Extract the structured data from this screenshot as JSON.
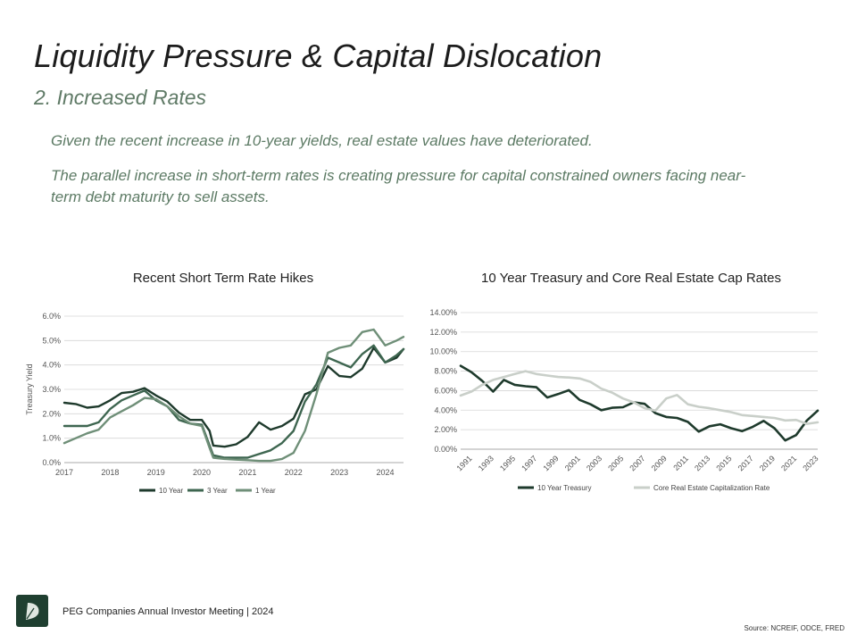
{
  "header": {
    "title": "Liquidity Pressure & Capital Dislocation",
    "subtitle": "2. Increased Rates"
  },
  "body": {
    "paragraph1": "Given the recent increase in 10-year yields, real estate values have deteriorated.",
    "paragraph2": "The parallel increase in short-term rates is creating pressure for capital constrained owners facing near-term debt maturity to sell assets."
  },
  "footer": {
    "text": "PEG Companies Annual Investor Meeting | 2024",
    "source": "Source: NCREIF, ODCE, FRED"
  },
  "colors": {
    "dark_green": "#1e3a2c",
    "mid_green": "#3e6650",
    "light_green": "#6f8f78",
    "light_gray": "#c9cfc9",
    "grid": "#d6d6d6",
    "logo_bg": "#1f3f30"
  },
  "chart_data": [
    {
      "type": "line",
      "title": "Recent Short Term Rate Hikes",
      "ylabel": "Treasury Yield",
      "xlabel": "",
      "xlim": [
        2017,
        2024.4
      ],
      "ylim": [
        0,
        6
      ],
      "x_ticks": [
        "2017",
        "2018",
        "2019",
        "2020",
        "2021",
        "2022",
        "2023",
        "2024"
      ],
      "y_ticks": [
        "0.0%",
        "1.0%",
        "2.0%",
        "3.0%",
        "4.0%",
        "5.0%",
        "6.0%"
      ],
      "grid": true,
      "legend_position": "bottom",
      "x": [
        2017.0,
        2017.25,
        2017.5,
        2017.75,
        2018.0,
        2018.25,
        2018.5,
        2018.75,
        2019.0,
        2019.25,
        2019.5,
        2019.75,
        2020.0,
        2020.17,
        2020.25,
        2020.5,
        2020.75,
        2021.0,
        2021.25,
        2021.5,
        2021.75,
        2022.0,
        2022.25,
        2022.5,
        2022.75,
        2023.0,
        2023.25,
        2023.5,
        2023.75,
        2024.0,
        2024.25,
        2024.4
      ],
      "series": [
        {
          "name": "10 Year",
          "values": [
            2.45,
            2.4,
            2.25,
            2.3,
            2.55,
            2.85,
            2.9,
            3.05,
            2.75,
            2.5,
            2.05,
            1.75,
            1.75,
            1.3,
            0.7,
            0.65,
            0.75,
            1.05,
            1.65,
            1.35,
            1.5,
            1.8,
            2.8,
            3.0,
            3.95,
            3.55,
            3.5,
            3.85,
            4.7,
            4.1,
            4.3,
            4.65
          ]
        },
        {
          "name": "3 Year",
          "values": [
            1.5,
            1.5,
            1.5,
            1.65,
            2.2,
            2.55,
            2.75,
            2.95,
            2.55,
            2.3,
            1.75,
            1.6,
            1.55,
            0.7,
            0.3,
            0.2,
            0.2,
            0.2,
            0.35,
            0.5,
            0.8,
            1.3,
            2.5,
            3.2,
            4.3,
            4.1,
            3.9,
            4.45,
            4.8,
            4.1,
            4.4,
            4.65
          ]
        },
        {
          "name": "1 Year",
          "values": [
            0.8,
            1.0,
            1.2,
            1.35,
            1.85,
            2.1,
            2.35,
            2.65,
            2.6,
            2.3,
            1.9,
            1.6,
            1.5,
            0.6,
            0.2,
            0.15,
            0.12,
            0.1,
            0.07,
            0.07,
            0.15,
            0.4,
            1.3,
            2.8,
            4.5,
            4.7,
            4.8,
            5.35,
            5.45,
            4.8,
            5.0,
            5.15
          ]
        }
      ]
    },
    {
      "type": "line",
      "title": "10 Year Treasury and Core Real Estate Cap Rates",
      "xlabel": "",
      "ylabel": "",
      "xlim": [
        1990,
        2023
      ],
      "ylim": [
        0,
        14
      ],
      "x_ticks": [
        "1991",
        "1993",
        "1995",
        "1997",
        "1999",
        "2001",
        "2003",
        "2005",
        "2007",
        "2009",
        "2011",
        "2013",
        "2015",
        "2017",
        "2019",
        "2021",
        "2023"
      ],
      "y_ticks": [
        "0.00%",
        "2.00%",
        "4.00%",
        "6.00%",
        "8.00%",
        "10.00%",
        "12.00%",
        "14.00%"
      ],
      "grid": true,
      "legend_position": "bottom",
      "x": [
        1990,
        1991,
        1992,
        1993,
        1994,
        1995,
        1996,
        1997,
        1998,
        1999,
        2000,
        2001,
        2002,
        2003,
        2004,
        2005,
        2006,
        2007,
        2008,
        2009,
        2010,
        2011,
        2012,
        2013,
        2014,
        2015,
        2016,
        2017,
        2018,
        2019,
        2020,
        2021,
        2022,
        2023
      ],
      "series": [
        {
          "name": "10 Year Treasury",
          "values": [
            8.55,
            7.9,
            7.0,
            5.9,
            7.1,
            6.6,
            6.45,
            6.35,
            5.3,
            5.65,
            6.05,
            5.05,
            4.6,
            4.0,
            4.25,
            4.3,
            4.8,
            4.65,
            3.7,
            3.3,
            3.2,
            2.8,
            1.8,
            2.35,
            2.55,
            2.15,
            1.85,
            2.3,
            2.9,
            2.15,
            0.9,
            1.45,
            2.95,
            3.95
          ]
        },
        {
          "name": "Core Real Estate Capitalization Rate",
          "values": [
            5.5,
            5.9,
            6.6,
            7.1,
            7.4,
            7.7,
            8.0,
            7.7,
            7.55,
            7.4,
            7.35,
            7.25,
            6.9,
            6.2,
            5.8,
            5.2,
            4.8,
            4.2,
            3.95,
            5.2,
            5.55,
            4.6,
            4.35,
            4.2,
            4.0,
            3.8,
            3.5,
            3.4,
            3.3,
            3.2,
            2.95,
            3.0,
            2.6,
            2.75
          ]
        }
      ]
    }
  ]
}
